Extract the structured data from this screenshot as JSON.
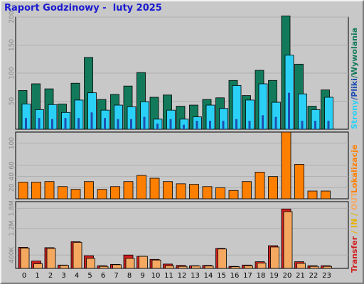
{
  "title": "Raport Godzinowy -  luty 2025",
  "colors": {
    "hits": "#127a5a",
    "files": "#1e4fb0",
    "pages": "#2ad0f5",
    "visits": "#ff7f00",
    "kbin": "#e8b000",
    "kbout": "#f5a860",
    "transfer": "#d02020",
    "frame_bg": "#c8c8c8",
    "title": "#1a1ad0"
  },
  "labels": {
    "hits": "Wywolania",
    "files": "Pliki",
    "pages": "Strony",
    "sep": "/",
    "visits": "Lokalizacje",
    "transfer": "Transfer",
    "in": "IN",
    "out": "OUT",
    "in_sep": " / "
  },
  "chart_data": [
    {
      "type": "bar",
      "name": "hits-pages-files",
      "categories": [
        "0",
        "1",
        "2",
        "3",
        "4",
        "5",
        "6",
        "7",
        "8",
        "9",
        "10",
        "11",
        "12",
        "13",
        "14",
        "15",
        "16",
        "17",
        "18",
        "19",
        "20",
        "21",
        "22",
        "23"
      ],
      "ylim": [
        0,
        200
      ],
      "yticks": [
        "50",
        "100",
        "150",
        "200"
      ],
      "series": [
        {
          "name": "Wywolania",
          "values": [
            69,
            81,
            72,
            45,
            82,
            128,
            53,
            62,
            77,
            101,
            57,
            61,
            41,
            43,
            53,
            56,
            87,
            60,
            105,
            87,
            202,
            116,
            41,
            70
          ]
        },
        {
          "name": "Pliki",
          "values": [
            20,
            20,
            18,
            20,
            20,
            30,
            20,
            18,
            18,
            22,
            10,
            18,
            8,
            15,
            15,
            15,
            18,
            15,
            25,
            22,
            65,
            15,
            15,
            15
          ]
        },
        {
          "name": "Strony",
          "values": [
            45,
            35,
            44,
            30,
            52,
            65,
            34,
            43,
            40,
            49,
            18,
            34,
            18,
            22,
            43,
            37,
            78,
            52,
            81,
            48,
            132,
            63,
            35,
            57
          ]
        }
      ]
    },
    {
      "type": "bar",
      "name": "visits",
      "categories": [
        "0",
        "1",
        "2",
        "3",
        "4",
        "5",
        "6",
        "7",
        "8",
        "9",
        "10",
        "11",
        "12",
        "13",
        "14",
        "15",
        "16",
        "17",
        "18",
        "19",
        "20",
        "21",
        "22",
        "23"
      ],
      "ylim": [
        0,
        120
      ],
      "yticks": [
        "20",
        "40",
        "60",
        "100"
      ],
      "series": [
        {
          "name": "Lokalizacje",
          "values": [
            30,
            30,
            31,
            22,
            17,
            31,
            17,
            22,
            31,
            42,
            37,
            31,
            27,
            26,
            22,
            20,
            15,
            31,
            48,
            40,
            120,
            62,
            14,
            14
          ]
        }
      ]
    },
    {
      "type": "bar",
      "name": "transfer",
      "categories": [
        "0",
        "1",
        "2",
        "3",
        "4",
        "5",
        "6",
        "7",
        "8",
        "9",
        "10",
        "11",
        "12",
        "13",
        "14",
        "15",
        "16",
        "17",
        "18",
        "19",
        "20",
        "21",
        "22",
        "23"
      ],
      "ylim": [
        0,
        2000000
      ],
      "yticks": [
        "400K",
        "1.2M",
        "1.8M"
      ],
      "series": [
        {
          "name": "Transfer",
          "values": [
            630000,
            220000,
            620000,
            100000,
            800000,
            380000,
            80000,
            120000,
            400000,
            360000,
            270000,
            130000,
            90000,
            80000,
            90000,
            600000,
            60000,
            100000,
            200000,
            680000,
            1780000,
            200000,
            80000,
            80000
          ]
        },
        {
          "name": "OUT",
          "values": [
            610000,
            140000,
            600000,
            90000,
            780000,
            300000,
            60000,
            110000,
            300000,
            360000,
            250000,
            80000,
            60000,
            70000,
            70000,
            580000,
            50000,
            80000,
            160000,
            640000,
            1700000,
            150000,
            60000,
            60000
          ]
        }
      ]
    }
  ]
}
